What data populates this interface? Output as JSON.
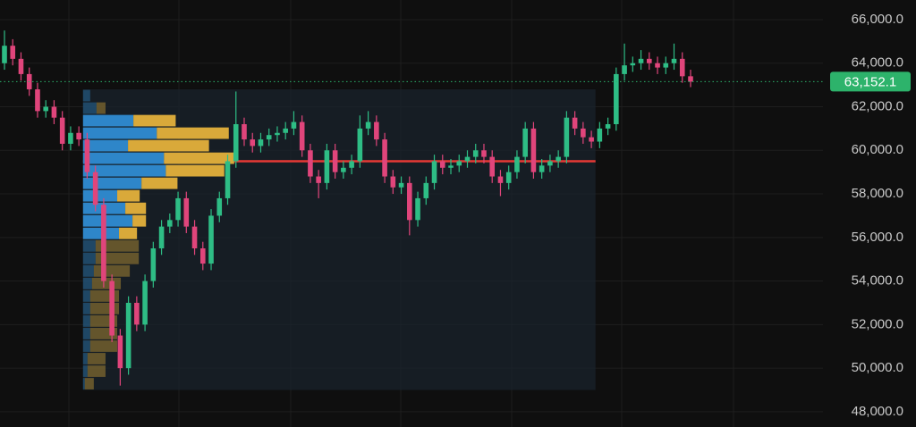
{
  "chart_data": {
    "type": "candlestick",
    "up_color": "#2ebd85",
    "down_color": "#e0457b",
    "ylim": [
      47300,
      66900
    ],
    "yticks": [
      {
        "value": 66000,
        "label": "66,000.0"
      },
      {
        "value": 64000,
        "label": "64,000.0"
      },
      {
        "value": 62000,
        "label": "62,000.0"
      },
      {
        "value": 60000,
        "label": "60,000.0"
      },
      {
        "value": 58000,
        "label": "58,000.0"
      },
      {
        "value": 56000,
        "label": "56,000.0"
      },
      {
        "value": 54000,
        "label": "54,000.0"
      },
      {
        "value": 52000,
        "label": "52,000.0"
      },
      {
        "value": 50000,
        "label": "50,000.0"
      },
      {
        "value": 48000,
        "label": "48,000.0"
      }
    ],
    "grid": true,
    "last_price": {
      "value": 63152.1,
      "label": "63,152.1",
      "color": "#2db36b"
    },
    "open": [
      64000,
      64800,
      64200,
      63500,
      62800,
      61800,
      62000,
      61500,
      60300,
      60800,
      60500,
      59000,
      57500,
      54000,
      51500,
      50000,
      53000,
      52000,
      54000,
      55500,
      56500,
      56800,
      57800,
      56500,
      55500,
      54800,
      57000,
      57800,
      59500,
      61200,
      60500,
      60200,
      60500,
      60700,
      60800,
      61000,
      61300,
      60000,
      58800,
      58500,
      60000,
      59000,
      59200,
      59500,
      61000,
      61300,
      60500,
      58800,
      58300,
      58500,
      56800,
      57800,
      58500,
      59500,
      59200,
      59300,
      59500,
      59700,
      60000,
      59700,
      58800,
      58500,
      59000,
      59700,
      61000,
      59000,
      59300,
      59500,
      59700,
      61500,
      61000,
      60600,
      60400,
      61000,
      61200,
      63500,
      63900,
      64000,
      64200,
      64000,
      63800,
      64000,
      64200,
      63400
    ],
    "high": [
      65500,
      65100,
      64500,
      63800,
      63100,
      62300,
      62300,
      61800,
      61100,
      61100,
      60800,
      59300,
      57800,
      54300,
      51800,
      53300,
      53300,
      54300,
      55800,
      56800,
      57100,
      58100,
      58100,
      56800,
      55800,
      57300,
      58100,
      59800,
      62700,
      61500,
      60800,
      60800,
      61000,
      61100,
      61300,
      61800,
      61600,
      60300,
      59100,
      60300,
      60300,
      59500,
      59800,
      61600,
      61800,
      61600,
      60800,
      59100,
      58800,
      58800,
      58100,
      58800,
      59800,
      59800,
      59600,
      59800,
      60000,
      60300,
      60300,
      60000,
      59100,
      59300,
      60000,
      61300,
      61300,
      59600,
      59800,
      60000,
      61800,
      61800,
      61300,
      60900,
      61300,
      61500,
      63800,
      64900,
      64300,
      64600,
      64500,
      64300,
      64300,
      64900,
      64500,
      63700
    ],
    "low": [
      63700,
      63900,
      63200,
      62500,
      61500,
      61500,
      61200,
      60000,
      60000,
      60200,
      58700,
      57200,
      53700,
      51200,
      49200,
      49700,
      51700,
      51700,
      53700,
      55200,
      56200,
      56500,
      56200,
      55200,
      54500,
      54500,
      56700,
      57500,
      59200,
      60200,
      59900,
      59900,
      60200,
      60400,
      60500,
      60700,
      59700,
      58500,
      57800,
      58200,
      58700,
      58700,
      58900,
      59200,
      60700,
      60200,
      58500,
      58000,
      58000,
      56100,
      56500,
      57500,
      58200,
      58900,
      58900,
      59000,
      59200,
      59400,
      59400,
      58500,
      57900,
      58200,
      58700,
      59400,
      58700,
      58700,
      59000,
      59200,
      59400,
      60700,
      60300,
      60100,
      60100,
      60700,
      60900,
      63200,
      63600,
      63700,
      63700,
      63500,
      63500,
      63700,
      63100,
      62900
    ],
    "close": [
      64800,
      64200,
      63500,
      62800,
      61800,
      62000,
      61500,
      60300,
      60800,
      60500,
      59000,
      57500,
      54000,
      51500,
      50000,
      53000,
      52000,
      54000,
      55500,
      56500,
      56800,
      57800,
      56500,
      55500,
      54800,
      57000,
      57800,
      59500,
      61200,
      60500,
      60200,
      60500,
      60700,
      60800,
      61000,
      61300,
      60000,
      58800,
      58500,
      60000,
      59000,
      59200,
      59500,
      61000,
      61300,
      60500,
      58800,
      58300,
      58500,
      56800,
      57800,
      58500,
      59500,
      59200,
      59300,
      59500,
      59700,
      60000,
      59700,
      58800,
      58500,
      59000,
      59700,
      61000,
      59000,
      59300,
      59500,
      59700,
      61500,
      61000,
      60600,
      60400,
      61000,
      61200,
      63500,
      63900,
      64000,
      64200,
      64000,
      63800,
      64000,
      64200,
      63400,
      63152.1
    ],
    "profile": {
      "start": 10,
      "end": 71,
      "bins": [
        49000,
        49575,
        50150,
        50725,
        51300,
        51875,
        52450,
        53025,
        53600,
        54175,
        54750,
        55325,
        55900,
        56475,
        57050,
        57625,
        58200,
        58775,
        59350,
        59925,
        60500,
        61075,
        61650,
        62225,
        62800
      ],
      "up": [
        2,
        5,
        5,
        8,
        8,
        8,
        8,
        8,
        10,
        12,
        14,
        14,
        40,
        55,
        47,
        38,
        65,
        92,
        90,
        50,
        82,
        56,
        15,
        8
      ],
      "down": [
        10,
        20,
        20,
        30,
        30,
        30,
        32,
        32,
        32,
        40,
        48,
        48,
        20,
        15,
        23,
        25,
        40,
        65,
        78,
        90,
        80,
        47,
        10,
        0
      ],
      "up_color": "#2e86c9",
      "down_color": "#d9a93a",
      "value_area": [
        55900,
        61650
      ],
      "poc": 59500,
      "poc_color": "#e53935"
    }
  }
}
